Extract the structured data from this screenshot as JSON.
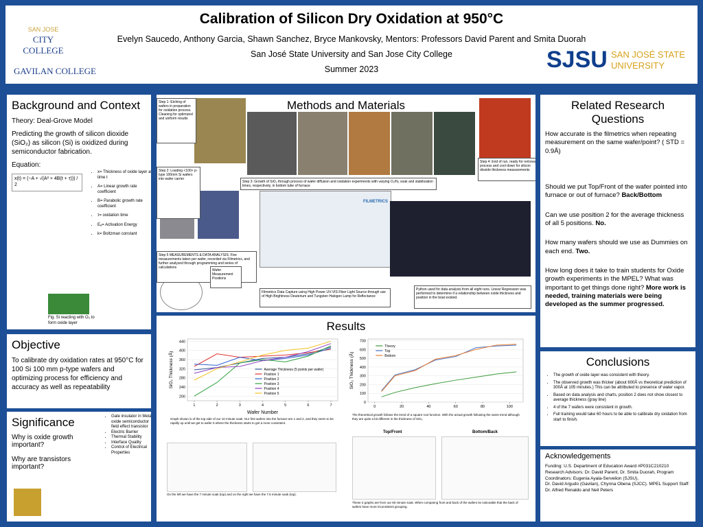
{
  "header": {
    "title": "Calibration of Silicon Dry Oxidation at 950°C",
    "authors": "Evelyn Saucedo, Anthony Garcia, Shawn Sanchez, Bryce Mankovsky, Mentors: Professors David Parent and Smita Duorah",
    "affiliations": "San José State University  and San Jose City College",
    "date": "Summer 2023",
    "logo_sjcc_top": "SAN JOSE",
    "logo_sjcc": "CITY COLLEGE",
    "logo_gavilan": "GAVILAN COLLEGE",
    "logo_sjsu": "SJSU",
    "logo_sjsu_name1": "SAN JOSÉ STATE",
    "logo_sjsu_name2": "UNIVERSITY"
  },
  "background": {
    "heading": "Background and Context",
    "theory": "Theory: Deal-Grove Model",
    "text": "Predicting the growth of silicon dioxide (SiO₂) as silicon (Si) is oxidized during semiconductor fabrication.",
    "equation_label": "Equation:",
    "equation": "x(t) = (−A + √(A² + 4B(t + τ))) / 2",
    "where": [
      "x= Thickness of oxide layer at time t",
      "A= Linear growth rate coefficient",
      "B= Parabolic growth rate coefficient",
      "τ= oxidation time",
      "Eₐ= Activation Energy",
      "k= Boltzman constant"
    ],
    "figure_caption": "Fig. Si reacting with O₂ to form oxide layer"
  },
  "objective": {
    "heading": "Objective",
    "text": "To calibrate dry oxidation rates at 950°C for 100 Si 100 mm p-type wafers and optimizing process for efficiency and accuracy as well as repeatability"
  },
  "significance": {
    "heading": "Significance",
    "questions": [
      "Why is oxide growth important?",
      "Why are transistors important?"
    ],
    "notes": [
      "Gate insulator in Metal oxide semiconductor field effect transistor",
      "Electric Barrier",
      "Thermal Stability",
      "Interface Quality",
      "Control of Electrical Properties"
    ]
  },
  "methods": {
    "heading": "Methods and Materials",
    "steps": [
      "Step 1: Etching of wafers in preparation for oxidation process. Cleaning for optimized and uniform results",
      "Step 2: Loading <100> p-type 100mm Si wafers into wafer carrier",
      "Step 3: Growth of SiO₂ through process of wafer diffusion and oxidation experiments with varying O₂/N₂ soak and stabilization times, respectively, in bottom tube of furnace",
      "Step 4: End of run, ready for removal process and cool down for silicon dioxide thickness measurements",
      "Step 5 MEASUREMENTS & DATA ANALYSIS: Five measurements taken per wafer, recorded via Filmetrics, and further analyzed through programming and series of calculations",
      "Wafer Measurement Positions",
      "Filmetrics Data Capture using High Power UV-VIS Fiber Light Source through use of High Brightness Deuterium and Tungsten Halogen Lamp for Reflectance",
      "Python used for data analysis from all eight runs. Linear Regression was performed to determine if a relationship between oxide thickness and position in the boat existed."
    ],
    "software": "FILMETRICS"
  },
  "results": {
    "heading": "Results",
    "caption_main": "Graph shown is of the top side of our 10 minute soak. Our first wafers into the furnace are 1 and 2, and they seem to be rapidly up until we get to wafer 5 where the thickness starts to get a more consistent.",
    "caption_theory": "The theoretical growth follows the trend of a square root function. With the actual growth following the same trend although they are quite a bit different in the thickness of SiO₂.",
    "caption_small": "On the left we have the 7 minute soak (top) and on the right we have the 7.5 minute soak (top).",
    "title_top": "Top/Front",
    "title_bottom": "Bottom/Back",
    "caption_regression": "These 2 graphs are from our 60 minute soak. When comparing front and back of the wafers its noticeable that the back of wafers have more inconsistent grouping."
  },
  "related": {
    "heading": "Related Research Questions",
    "items": [
      {
        "q": "How accurate is the filmetrics when repeating measurement on the same wafer/point? ( STD = 0.9Å)",
        "a": ""
      },
      {
        "q": "Should we put Top/Front of the wafer pointed into furnace or out of furnace?",
        "a": "Back/Bottom"
      },
      {
        "q": "Can we use position 2 for the average thickness of all 5 positions.",
        "a": "No."
      },
      {
        "q": "How many wafers should we use as Dummies on each end.",
        "a": "Two."
      },
      {
        "q": "How long does it take to train students  for Oxide growth experiments in the MPEL? What was important to get things done right?",
        "a": "More work is needed, training materials were being developed as the summer progressed."
      }
    ]
  },
  "conclusions": {
    "heading": "Conclusions",
    "items": [
      "The growth of oxide layer was consistent with theory.",
      "The observed growth was thicker (about 600Å vs theoretical prediction of 300Å at 105 minutes.) This can be attributed to presence of water vapor.",
      "Based on data analysis and charts, position 2 does not show closest to average thickness (gray line)",
      "4 of the 7 wafers were consistent in growth.",
      "Full training would take 60 hours to be able to calibrate dry oxidation from start to finish."
    ]
  },
  "acknowledgements": {
    "heading": "Acknowledgements",
    "lines": [
      "Funding: U.S. Department of Education Award #P031C210210",
      "Research Advisors: Dr. David Parent, Dr. Smita Duorah, Program Coordinators: Eugenia Ayala-Servelion (SJSU),",
      "Dr. David Argudo (Gavilan), Chynna Obena (SJCC).  MPEL Support Staff: Dr. Alfred Renaldo and Neil Peters"
    ]
  },
  "chart_data": [
    {
      "type": "line",
      "xlabel": "Wafer Number",
      "ylabel": "SiO₂ Thickness (Å)",
      "x": [
        1,
        2,
        3,
        4,
        5,
        6,
        7
      ],
      "xlim": [
        0.7,
        7.3
      ],
      "xticks": [
        1,
        2,
        3,
        4,
        5,
        6,
        7
      ],
      "ylim": [
        180,
        450
      ],
      "yticks": [
        200,
        240,
        280,
        320,
        360,
        400,
        440
      ],
      "series": [
        {
          "name": "Average Thickness (5 points per wafer)",
          "color": "#2f5597",
          "values": [
            315,
            325,
            345,
            365,
            370,
            385,
            415
          ]
        },
        {
          "name": "Position 1",
          "color": "#e03030",
          "values": [
            330,
            385,
            370,
            375,
            380,
            390,
            405
          ]
        },
        {
          "name": "Position 2",
          "color": "#3060d0",
          "values": [
            340,
            335,
            370,
            355,
            365,
            380,
            410
          ]
        },
        {
          "name": "Position 3",
          "color": "#30a040",
          "values": [
            200,
            260,
            345,
            360,
            350,
            375,
            420
          ]
        },
        {
          "name": "Position 4",
          "color": "#9040c0",
          "values": [
            300,
            325,
            330,
            355,
            370,
            395,
            430
          ]
        },
        {
          "name": "Position 5",
          "color": "#f0c020",
          "values": [
            270,
            320,
            350,
            380,
            400,
            410,
            440
          ]
        }
      ]
    },
    {
      "type": "line",
      "ylabel": "SiO₂ Thickness (Å)",
      "x": [
        5,
        15,
        30,
        45,
        60,
        75,
        90,
        105
      ],
      "xlim": [
        -5,
        110
      ],
      "xticks": [
        0,
        20,
        40,
        60,
        80,
        100
      ],
      "ylim": [
        0,
        720
      ],
      "yticks": [
        0,
        100,
        200,
        300,
        400,
        500,
        600,
        700
      ],
      "series": [
        {
          "name": "Theory",
          "color": "#3a9a3a",
          "values": [
            60,
            110,
            165,
            210,
            250,
            285,
            320,
            345
          ]
        },
        {
          "name": "Top",
          "color": "#4472c4",
          "values": [
            130,
            310,
            370,
            480,
            520,
            620,
            640,
            650
          ]
        },
        {
          "name": "Bottom",
          "color": "#ed7d31",
          "values": [
            120,
            300,
            360,
            490,
            530,
            600,
            650,
            660
          ]
        }
      ]
    }
  ]
}
